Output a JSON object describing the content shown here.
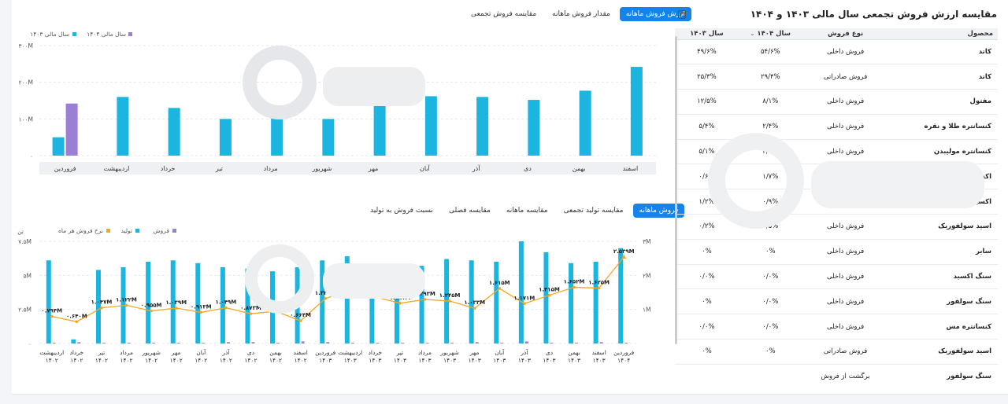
{
  "top_tabs": [
    "ارزش فروش ماهانه",
    "مقدار فروش ماهانه",
    "مقایسه فروش تجمعی"
  ],
  "bottom_tabs": [
    "فروش ماهانه",
    "مقایسه تولید تجمعی",
    "مقایسه ماهانه",
    "مقایسه فصلی",
    "نسبت فروش به تولید"
  ],
  "panel": {
    "title": "مقایسه ارزش فروش تجمعی سال مالی ۱۴۰۳ و ۱۴۰۴",
    "headers": {
      "product": "محصول",
      "type": "نوع فروش",
      "y1404": "سال ۱۴۰۴",
      "y1403": "سال ۱۴۰۳"
    },
    "rows": [
      {
        "product": "کاتد",
        "type": "فروش داخلی",
        "y1404": "۵۴/۶%",
        "y1403": "۴۹/۶%"
      },
      {
        "product": "کاتد",
        "type": "فروش صادراتی",
        "y1404": "۲۹/۴%",
        "y1403": "۲۵/۳%"
      },
      {
        "product": "مفتول",
        "type": "فروش داخلی",
        "y1404": "۸/۱%",
        "y1403": "۱۲/۵%"
      },
      {
        "product": "کنسانتره طلا و نقره",
        "type": "فروش داخلی",
        "y1404": "۲/۴%",
        "y1403": "۵/۴%"
      },
      {
        "product": "کنسانتره مولیبدن",
        "type": "فروش داخلی",
        "y1404": "۲/۳%",
        "y1403": "۵/۱%"
      },
      {
        "product": "اکسید مولیبدن",
        "type": "فروش صادراتی",
        "y1404": "۱/۷%",
        "y1403": "۰/۶%"
      },
      {
        "product": "اکسید مولیبدن",
        "type": "فروش داخلی",
        "y1404": "۰/۹%",
        "y1403": "۱/۲%"
      },
      {
        "product": "اسید سولفوریک",
        "type": "فروش داخلی",
        "y1404": "۰/۵%",
        "y1403": "۰/۲%"
      },
      {
        "product": "سایر",
        "type": "فروش داخلی",
        "y1404": "۰%",
        "y1403": "۰%"
      },
      {
        "product": "سنگ اکسید",
        "type": "فروش داخلی",
        "y1404": "۰/۰%",
        "y1403": "۰/۰%"
      },
      {
        "product": "سنگ سولفور",
        "type": "فروش داخلی",
        "y1404": "۰/۰%",
        "y1403": "۰%"
      },
      {
        "product": "کنسانتره مس",
        "type": "فروش داخلی",
        "y1404": "۰/۰%",
        "y1403": "۰/۰%"
      },
      {
        "product": "اسید سولفوریک",
        "type": "فروش صادراتی",
        "y1404": "۰%",
        "y1403": "۰%"
      },
      {
        "product": "سنگ سولفور",
        "type": "برگشت از فروش",
        "y1404": "",
        "y1403": ""
      }
    ]
  },
  "colors": {
    "accent": "#1683e9",
    "series_1403": "#1cb5e0",
    "series_1404": "#9b7fd4",
    "rate": "#f5a623"
  },
  "chart_data": [
    {
      "type": "bar",
      "ytick_labels": [
        "۰",
        "۱۰۰M",
        "۲۰۰M",
        "۳۰۰M"
      ],
      "ylim": [
        0,
        300
      ],
      "categories": [
        "فروردین",
        "اردیبهشت",
        "خرداد",
        "تیر",
        "مرداد",
        "شهریور",
        "مهر",
        "آبان",
        "آذر",
        "دی",
        "بهمن",
        "اسفند"
      ],
      "series": [
        {
          "name": "سال مالی ۱۴۰۳",
          "values": [
            50,
            160,
            130,
            100,
            130,
            100,
            178,
            162,
            160,
            152,
            177,
            242
          ]
        },
        {
          "name": "سال مالی ۱۴۰۴",
          "values": [
            142,
            null,
            null,
            null,
            null,
            null,
            null,
            null,
            null,
            null,
            null,
            null
          ]
        }
      ],
      "legend": "top-left"
    },
    {
      "type": "bar",
      "ylabel": "تن",
      "ytick_labels_left": [
        "۰",
        "۲.۵M",
        "۵M",
        "۷.۵M"
      ],
      "ytick_labels_right": [
        "۱M",
        "۲M",
        "۳M"
      ],
      "ylim_left": [
        0,
        7.5
      ],
      "ylim_right": [
        0,
        3
      ],
      "categories": [
        "اردیبهشت ۱۴۰۲",
        "خرداد ۱۴۰۲",
        "تیر ۱۴۰۲",
        "مرداد ۱۴۰۲",
        "شهریور ۱۴۰۲",
        "مهر ۱۴۰۲",
        "آبان ۱۴۰۲",
        "آذر ۱۴۰۲",
        "دی ۱۴۰۲",
        "بهمن ۱۴۰۲",
        "اسفند ۱۴۰۲",
        "فروردین ۱۴۰۳",
        "اردیبهشت ۱۴۰۳",
        "خرداد ۱۴۰۳",
        "تیر ۱۴۰۳",
        "مرداد ۱۴۰۳",
        "شهریور ۱۴۰۳",
        "مهر ۱۴۰۳",
        "آبان ۱۴۰۳",
        "آذر ۱۴۰۳",
        "دی ۱۴۰۳",
        "بهمن ۱۴۰۳",
        "اسفند ۱۴۰۳",
        "فروردین ۱۴۰۴"
      ],
      "series": [
        {
          "name": "فروش",
          "values": [
            0.05,
            0.1,
            0.05,
            0.05,
            0.05,
            0.05,
            0.05,
            0.1,
            0.1,
            0.05,
            0.15,
            0.1,
            0.05,
            0.05,
            0.05,
            0.05,
            0.05,
            0.1,
            0.05,
            0.15,
            0.05,
            0.05,
            0.1,
            0.05
          ]
        },
        {
          "name": "تولید",
          "values": [
            6.1,
            0.3,
            5.4,
            5.6,
            6.0,
            6.1,
            5.9,
            5.6,
            5.5,
            5.3,
            5.6,
            6.1,
            6.4,
            5.1,
            5.5,
            5.7,
            6.2,
            6.1,
            6.0,
            7.5,
            6.7,
            5.9,
            6.0,
            7.0
          ]
        },
        {
          "name": "نرخ فروش هر ماه",
          "values": [
            0.794,
            0.64,
            1.047,
            1.122,
            0.955,
            1.039,
            0.913,
            1.049,
            0.873,
            0.948,
            0.664,
            1.32,
            1.556,
            1.366,
            1.181,
            1.293,
            1.245,
            1.033,
            1.615,
            1.171,
            1.415,
            1.652,
            1.625,
            2.539
          ]
        }
      ],
      "rate_labels": [
        "۰.۷۹۴M",
        "۰.۶۴۰M",
        "۱.۰۴۷M",
        "۱.۱۲۲M",
        "۰.۹۵۵M",
        "۱.۰۳۹M",
        "۰.۹۱۳M",
        "۱.۰۴۹M",
        "۰.۸۷۳M",
        "۰.۹۴۸M",
        "۰.۶۶۴M",
        "۱.۳۲۰M",
        "۱.۵۵۶M",
        "۱.۳۶۶M",
        "۱.۱۸۱M",
        "۱.۲۹۳M",
        "۱.۲۴۵M",
        "۱.۰۳۳M",
        "۱.۶۱۵M",
        "۱.۱۷۱M",
        "۱.۴۱۵M",
        "۱.۶۵۲M",
        "۱.۶۲۵M",
        "۲.۵۳۹M"
      ],
      "legend": "top-left"
    }
  ]
}
